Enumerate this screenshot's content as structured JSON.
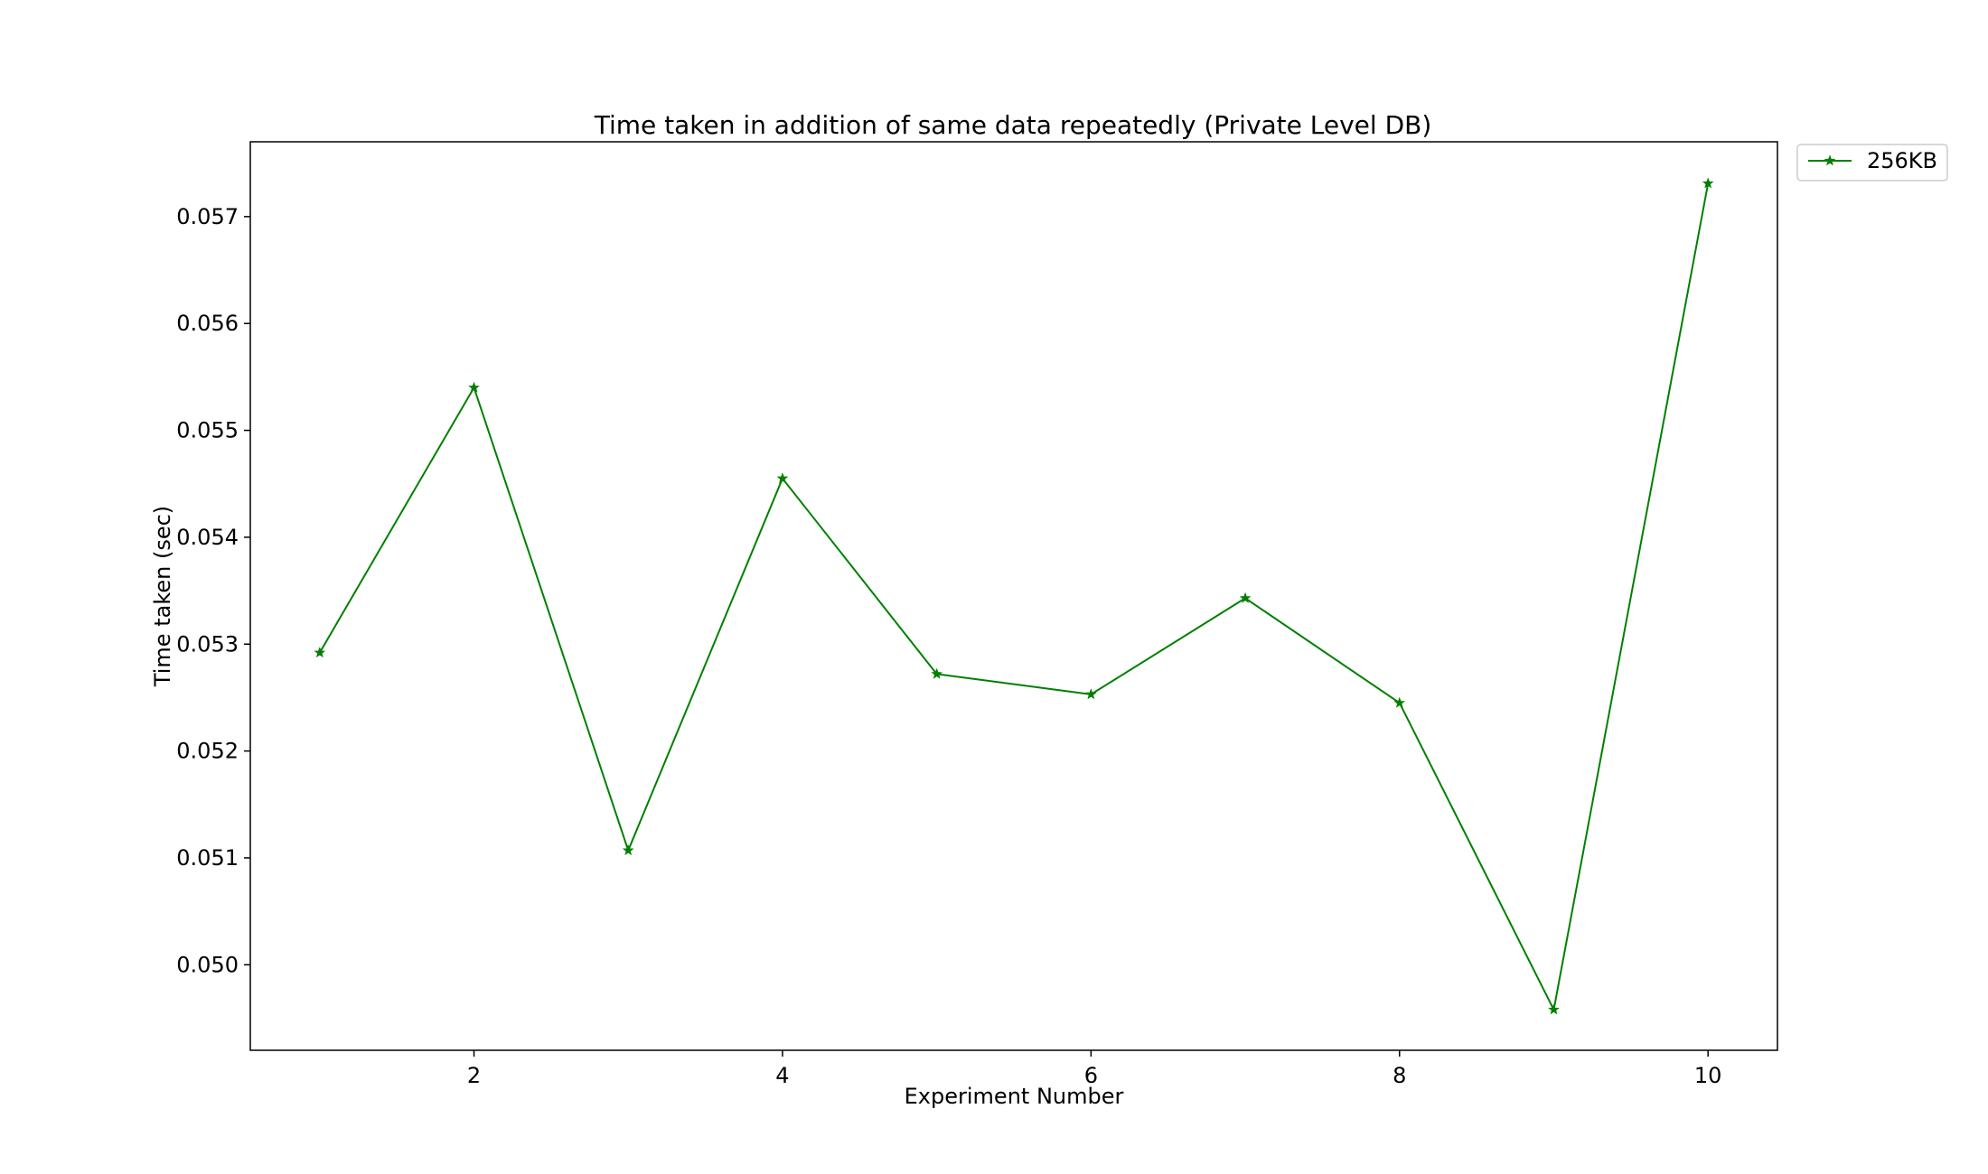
{
  "chart_data": {
    "type": "line",
    "title": "Time taken in addition of same data repeatedly (Private Level DB)",
    "xlabel": "Experiment Number",
    "ylabel": "Time taken (sec)",
    "x": [
      1,
      2,
      3,
      4,
      5,
      6,
      7,
      8,
      9,
      10
    ],
    "xticks": [
      2,
      4,
      6,
      8,
      10
    ],
    "xlim": [
      0.55,
      10.45
    ],
    "yticks": [
      0.05,
      0.051,
      0.052,
      0.053,
      0.054,
      0.055,
      0.056,
      0.057
    ],
    "ytick_labels": [
      "0.050",
      "0.051",
      "0.052",
      "0.053",
      "0.054",
      "0.055",
      "0.056",
      "0.057"
    ],
    "ylim": [
      0.0492,
      0.0577
    ],
    "grid": false,
    "legend_position": "outside-top-right",
    "series": [
      {
        "name": "256KB",
        "color": "#008000",
        "marker": "star",
        "values": [
          0.05292,
          0.0554,
          0.05107,
          0.05455,
          0.05272,
          0.05253,
          0.05343,
          0.05245,
          0.04958,
          0.05731
        ]
      }
    ]
  }
}
